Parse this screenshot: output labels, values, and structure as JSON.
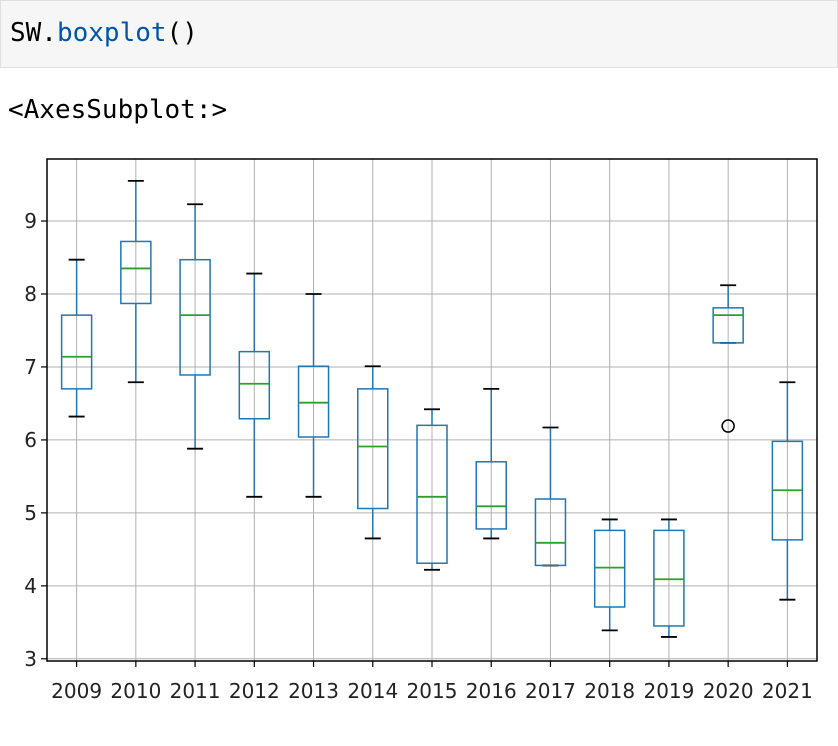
{
  "input_cell": {
    "object": "SW.",
    "method": "boxplot",
    "call": "()"
  },
  "output": {
    "repr": "<AxesSubplot:>"
  },
  "colors": {
    "box": "#1f77b4",
    "median": "#2ca02c",
    "whisker_cap": "#000000",
    "grid": "#b0b0b0"
  },
  "chart_data": {
    "type": "box",
    "grid": true,
    "ylim": [
      2.97,
      9.85
    ],
    "yticks": [
      3,
      4,
      5,
      6,
      7,
      8,
      9
    ],
    "categories": [
      "2009",
      "2010",
      "2011",
      "2012",
      "2013",
      "2014",
      "2015",
      "2016",
      "2017",
      "2018",
      "2019",
      "2020",
      "2021"
    ],
    "boxes": [
      {
        "label": "2009",
        "whislo": 6.32,
        "q1": 6.7,
        "med": 7.14,
        "q3": 7.71,
        "whishi": 8.47,
        "fliers": []
      },
      {
        "label": "2010",
        "whislo": 6.79,
        "q1": 7.87,
        "med": 8.35,
        "q3": 8.72,
        "whishi": 9.55,
        "fliers": []
      },
      {
        "label": "2011",
        "whislo": 5.88,
        "q1": 6.89,
        "med": 7.71,
        "q3": 8.47,
        "whishi": 9.23,
        "fliers": []
      },
      {
        "label": "2012",
        "whislo": 5.22,
        "q1": 6.29,
        "med": 6.77,
        "q3": 7.21,
        "whishi": 8.28,
        "fliers": []
      },
      {
        "label": "2013",
        "whislo": 5.22,
        "q1": 6.04,
        "med": 6.51,
        "q3": 7.01,
        "whishi": 8.0,
        "fliers": []
      },
      {
        "label": "2014",
        "whislo": 4.65,
        "q1": 5.06,
        "med": 5.91,
        "q3": 6.7,
        "whishi": 7.01,
        "fliers": []
      },
      {
        "label": "2015",
        "whislo": 4.22,
        "q1": 4.31,
        "med": 5.22,
        "q3": 6.2,
        "whishi": 6.42,
        "fliers": []
      },
      {
        "label": "2016",
        "whislo": 4.65,
        "q1": 4.78,
        "med": 5.09,
        "q3": 5.7,
        "whishi": 6.7,
        "fliers": []
      },
      {
        "label": "2017",
        "whislo": 4.28,
        "q1": 4.28,
        "med": 4.59,
        "q3": 5.19,
        "whishi": 6.17,
        "fliers": []
      },
      {
        "label": "2018",
        "whislo": 3.39,
        "q1": 3.71,
        "med": 4.25,
        "q3": 4.76,
        "whishi": 4.91,
        "fliers": []
      },
      {
        "label": "2019",
        "whislo": 3.3,
        "q1": 3.45,
        "med": 4.09,
        "q3": 4.76,
        "whishi": 4.91,
        "fliers": []
      },
      {
        "label": "2020",
        "whislo": 7.33,
        "q1": 7.33,
        "med": 7.71,
        "q3": 7.81,
        "whishi": 8.12,
        "fliers": [
          6.19
        ]
      },
      {
        "label": "2021",
        "whislo": 3.81,
        "q1": 4.63,
        "med": 5.31,
        "q3": 5.98,
        "whishi": 6.79,
        "fliers": []
      }
    ]
  }
}
